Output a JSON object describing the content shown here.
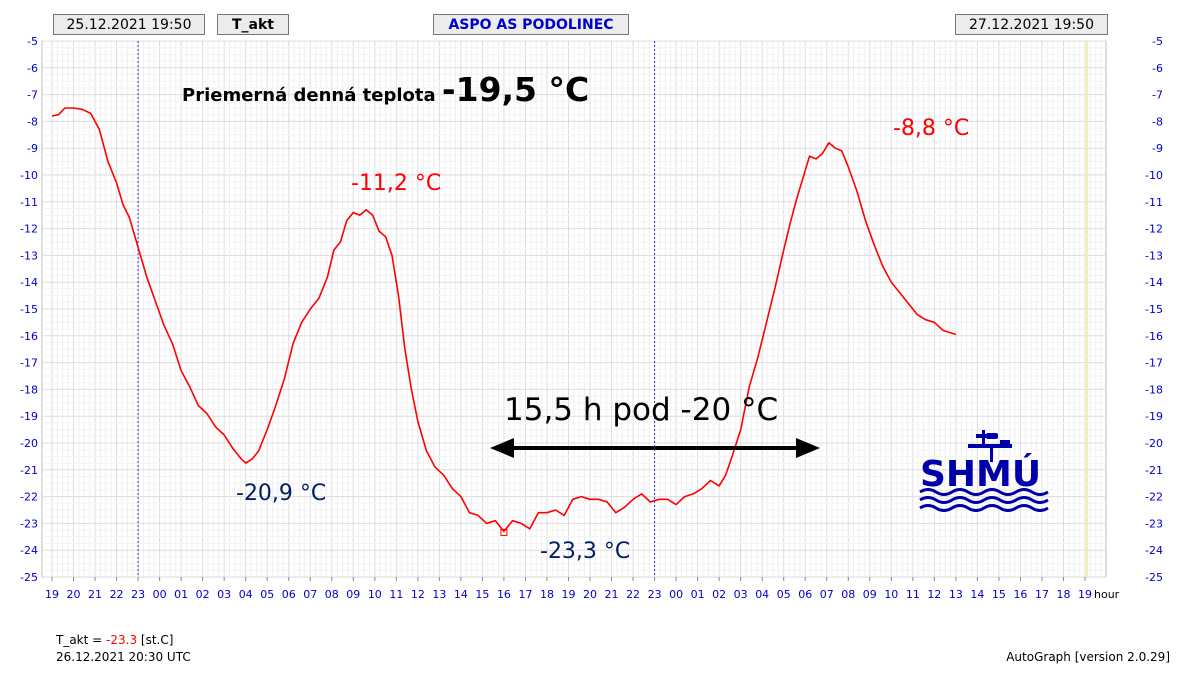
{
  "header": {
    "start_time": "25.12.2021 19:50",
    "variable": "T_akt",
    "station": "ASPO AS PODOLINEC",
    "end_time": "27.12.2021 19:50"
  },
  "footer": {
    "variable_label": "T_akt = ",
    "current_value": "-23.3",
    "unit": " [st.C]",
    "timestamp": "26.12.2021 20:30 UTC",
    "version": "AutoGraph [version 2.0.29]"
  },
  "logo": {
    "text": "SHMU"
  },
  "colors": {
    "series": "#ff0000",
    "axis_text": "#0000cc",
    "annotation_dark": "#002060",
    "annotation_red": "#ff0000",
    "current_marker": "#f0f0a0"
  },
  "chart_data": {
    "type": "line",
    "x_unit_label": "hour",
    "x_ticks": [
      "19",
      "20",
      "21",
      "22",
      "23",
      "00",
      "01",
      "02",
      "03",
      "04",
      "05",
      "06",
      "07",
      "08",
      "09",
      "10",
      "11",
      "12",
      "13",
      "14",
      "15",
      "16",
      "17",
      "18",
      "19",
      "20",
      "21",
      "22",
      "23",
      "00",
      "01",
      "02",
      "03",
      "04",
      "05",
      "06",
      "07",
      "08",
      "09",
      "10",
      "11",
      "12",
      "13",
      "14",
      "15",
      "16",
      "17",
      "18",
      "19"
    ],
    "ylim": [
      -25,
      -5
    ],
    "y_ticks": [
      "-5",
      "-6",
      "-7",
      "-8",
      "-9",
      "-10",
      "-11",
      "-12",
      "-13",
      "-14",
      "-15",
      "-16",
      "-17",
      "-18",
      "-19",
      "-20",
      "-21",
      "-22",
      "-23",
      "-24",
      "-25"
    ],
    "grid": true,
    "day_boundaries_hours": [
      4,
      28
    ],
    "current_time_hour": 48.1,
    "series": [
      {
        "values": [
          [
            0.0,
            -7.8
          ],
          [
            0.3,
            -7.75
          ],
          [
            0.6,
            -7.5
          ],
          [
            1.0,
            -7.5
          ],
          [
            1.4,
            -7.55
          ],
          [
            1.8,
            -7.7
          ],
          [
            2.2,
            -8.3
          ],
          [
            2.6,
            -9.5
          ],
          [
            3.0,
            -10.3
          ],
          [
            3.3,
            -11.1
          ],
          [
            3.6,
            -11.6
          ],
          [
            4.0,
            -12.7
          ],
          [
            4.4,
            -13.8
          ],
          [
            4.8,
            -14.7
          ],
          [
            5.2,
            -15.6
          ],
          [
            5.6,
            -16.3
          ],
          [
            6.0,
            -17.3
          ],
          [
            6.4,
            -17.9
          ],
          [
            6.8,
            -18.6
          ],
          [
            7.2,
            -18.9
          ],
          [
            7.6,
            -19.4
          ],
          [
            8.0,
            -19.7
          ],
          [
            8.4,
            -20.2
          ],
          [
            8.8,
            -20.6
          ],
          [
            9.0,
            -20.75
          ],
          [
            9.3,
            -20.6
          ],
          [
            9.6,
            -20.3
          ],
          [
            10.0,
            -19.5
          ],
          [
            10.4,
            -18.6
          ],
          [
            10.8,
            -17.6
          ],
          [
            11.2,
            -16.3
          ],
          [
            11.6,
            -15.5
          ],
          [
            12.0,
            -15.0
          ],
          [
            12.4,
            -14.6
          ],
          [
            12.8,
            -13.8
          ],
          [
            13.1,
            -12.8
          ],
          [
            13.4,
            -12.5
          ],
          [
            13.7,
            -11.7
          ],
          [
            14.0,
            -11.4
          ],
          [
            14.3,
            -11.5
          ],
          [
            14.6,
            -11.3
          ],
          [
            14.9,
            -11.5
          ],
          [
            15.2,
            -12.1
          ],
          [
            15.5,
            -12.3
          ],
          [
            15.8,
            -13.0
          ],
          [
            16.1,
            -14.5
          ],
          [
            16.4,
            -16.5
          ],
          [
            16.7,
            -18.0
          ],
          [
            17.0,
            -19.2
          ],
          [
            17.4,
            -20.3
          ],
          [
            17.8,
            -20.9
          ],
          [
            18.2,
            -21.2
          ],
          [
            18.6,
            -21.7
          ],
          [
            19.0,
            -22.0
          ],
          [
            19.4,
            -22.6
          ],
          [
            19.8,
            -22.7
          ],
          [
            20.2,
            -23.0
          ],
          [
            20.6,
            -22.9
          ],
          [
            21.0,
            -23.3
          ],
          [
            21.4,
            -22.9
          ],
          [
            21.8,
            -23.0
          ],
          [
            22.2,
            -23.2
          ],
          [
            22.6,
            -22.6
          ],
          [
            23.0,
            -22.6
          ],
          [
            23.4,
            -22.5
          ],
          [
            23.8,
            -22.7
          ],
          [
            24.2,
            -22.1
          ],
          [
            24.6,
            -22.0
          ],
          [
            25.0,
            -22.1
          ],
          [
            25.4,
            -22.1
          ],
          [
            25.8,
            -22.2
          ],
          [
            26.2,
            -22.6
          ],
          [
            26.6,
            -22.4
          ],
          [
            27.0,
            -22.1
          ],
          [
            27.4,
            -21.9
          ],
          [
            27.8,
            -22.2
          ],
          [
            28.2,
            -22.1
          ],
          [
            28.6,
            -22.1
          ],
          [
            29.0,
            -22.3
          ],
          [
            29.4,
            -22.0
          ],
          [
            29.8,
            -21.9
          ],
          [
            30.2,
            -21.7
          ],
          [
            30.6,
            -21.4
          ],
          [
            31.0,
            -21.6
          ],
          [
            31.3,
            -21.2
          ],
          [
            31.6,
            -20.5
          ],
          [
            32.0,
            -19.5
          ],
          [
            32.4,
            -17.9
          ],
          [
            32.8,
            -16.8
          ],
          [
            33.2,
            -15.5
          ],
          [
            33.6,
            -14.2
          ],
          [
            34.0,
            -12.8
          ],
          [
            34.3,
            -11.8
          ],
          [
            34.6,
            -10.9
          ],
          [
            34.9,
            -10.1
          ],
          [
            35.2,
            -9.3
          ],
          [
            35.5,
            -9.4
          ],
          [
            35.8,
            -9.2
          ],
          [
            36.1,
            -8.8
          ],
          [
            36.4,
            -9.0
          ],
          [
            36.7,
            -9.1
          ],
          [
            37.0,
            -9.7
          ],
          [
            37.4,
            -10.6
          ],
          [
            37.8,
            -11.7
          ],
          [
            38.2,
            -12.6
          ],
          [
            38.6,
            -13.4
          ],
          [
            39.0,
            -14.0
          ],
          [
            39.4,
            -14.4
          ],
          [
            39.8,
            -14.8
          ],
          [
            40.2,
            -15.2
          ],
          [
            40.6,
            -15.4
          ],
          [
            41.0,
            -15.5
          ],
          [
            41.4,
            -15.8
          ],
          [
            41.8,
            -15.9
          ],
          [
            42.0,
            -15.95
          ]
        ]
      }
    ],
    "annotations": [
      {
        "id": "avg",
        "label": "Priemerná denná teplota ",
        "value": "-19,5 °C"
      },
      {
        "id": "min1",
        "text": "-20,9 °C"
      },
      {
        "id": "max1",
        "text": "-11,2 °C"
      },
      {
        "id": "min2",
        "text": "-23,3 °C"
      },
      {
        "id": "max2",
        "text": "-8,8 °C"
      },
      {
        "id": "duration",
        "text": "15,5 h pod -20 °C"
      }
    ]
  }
}
